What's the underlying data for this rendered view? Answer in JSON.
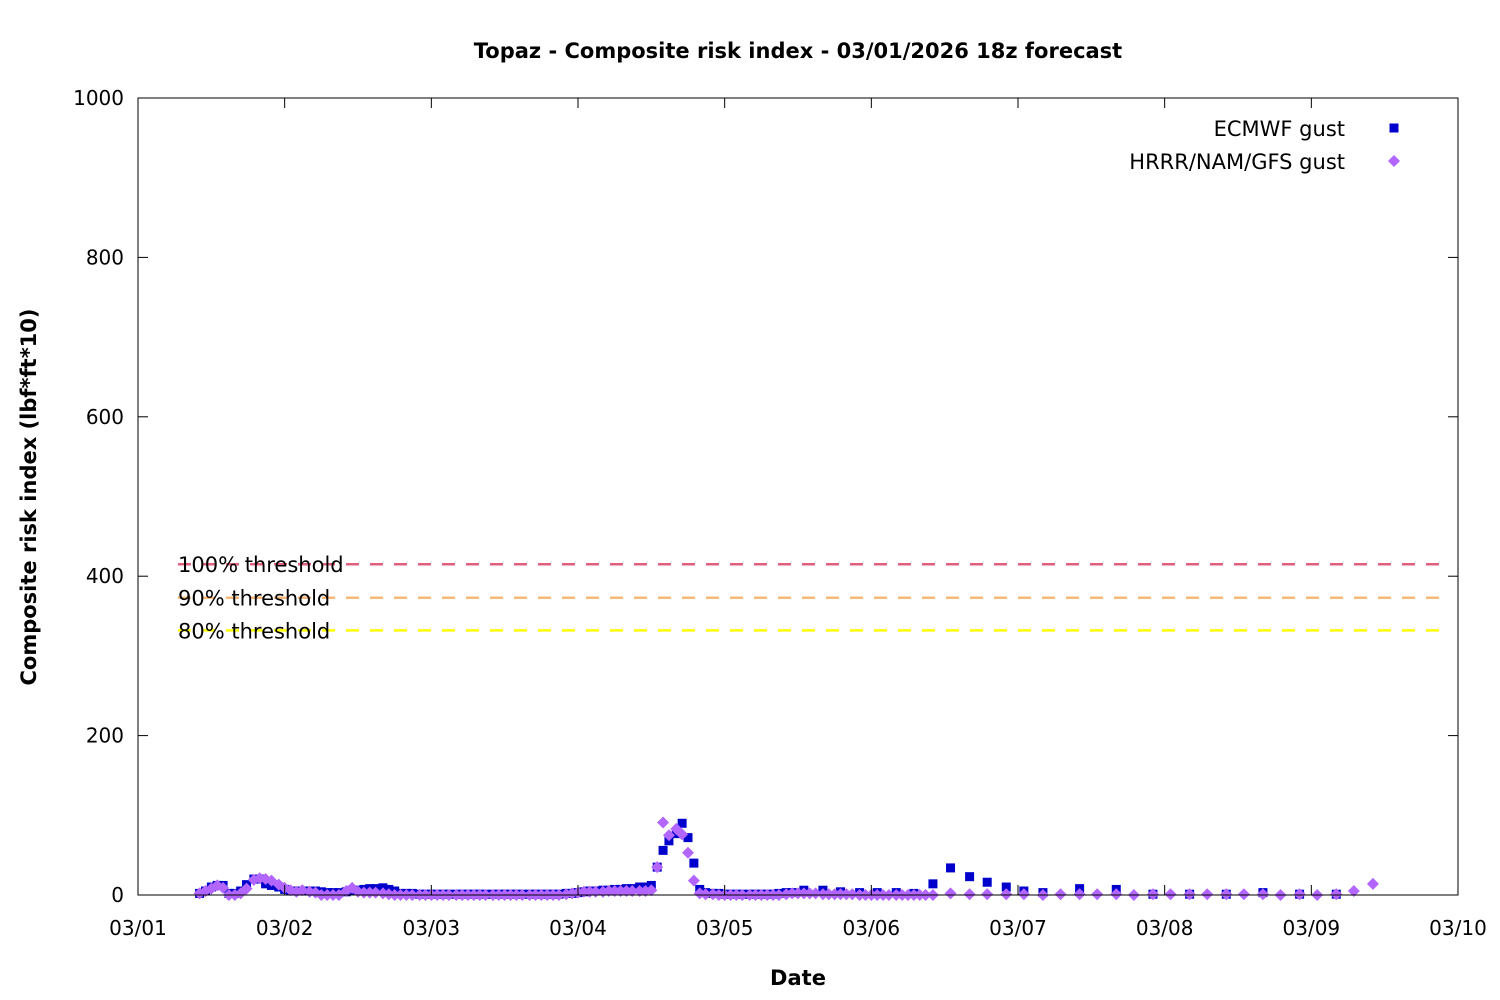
{
  "chart_data": {
    "type": "scatter",
    "title": "Topaz - Composite risk index - 03/01/2026 18z forecast",
    "xlabel": "Date",
    "ylabel": "Composite risk index (lbf*ft*10)",
    "x_tick_labels": [
      "03/01",
      "03/02",
      "03/03",
      "03/04",
      "03/05",
      "03/06",
      "03/07",
      "03/08",
      "03/09",
      "03/10"
    ],
    "x_range_days": [
      0,
      9
    ],
    "y_ticks": [
      "0",
      "200",
      "400",
      "600",
      "800",
      "1000"
    ],
    "ylim": [
      0,
      1000
    ],
    "legend_position": "top-right",
    "grid": false,
    "series": [
      {
        "name": "ECMWF gust",
        "marker": "square",
        "color": "#0000cc",
        "points": [
          [
            0.42,
            2
          ],
          [
            0.46,
            5
          ],
          [
            0.5,
            10
          ],
          [
            0.54,
            12
          ],
          [
            0.58,
            12
          ],
          [
            0.62,
            2
          ],
          [
            0.66,
            2
          ],
          [
            0.7,
            5
          ],
          [
            0.74,
            13
          ],
          [
            0.79,
            20
          ],
          [
            0.83,
            20
          ],
          [
            0.87,
            14
          ],
          [
            0.91,
            12
          ],
          [
            0.96,
            10
          ],
          [
            1.0,
            7
          ],
          [
            1.04,
            5
          ],
          [
            1.08,
            5
          ],
          [
            1.12,
            5
          ],
          [
            1.17,
            5
          ],
          [
            1.21,
            5
          ],
          [
            1.25,
            4
          ],
          [
            1.29,
            3
          ],
          [
            1.33,
            3
          ],
          [
            1.37,
            3
          ],
          [
            1.42,
            4
          ],
          [
            1.46,
            6
          ],
          [
            1.5,
            6
          ],
          [
            1.54,
            7
          ],
          [
            1.58,
            8
          ],
          [
            1.62,
            8
          ],
          [
            1.67,
            9
          ],
          [
            1.71,
            7
          ],
          [
            1.75,
            5
          ],
          [
            1.79,
            2
          ],
          [
            1.83,
            2
          ],
          [
            1.87,
            2
          ],
          [
            1.92,
            1
          ],
          [
            1.96,
            1
          ],
          [
            2.0,
            1
          ],
          [
            2.04,
            1
          ],
          [
            2.08,
            1
          ],
          [
            2.12,
            1
          ],
          [
            2.17,
            1
          ],
          [
            2.21,
            1
          ],
          [
            2.25,
            1
          ],
          [
            2.29,
            1
          ],
          [
            2.33,
            1
          ],
          [
            2.37,
            1
          ],
          [
            2.42,
            1
          ],
          [
            2.46,
            1
          ],
          [
            2.5,
            1
          ],
          [
            2.54,
            1
          ],
          [
            2.58,
            1
          ],
          [
            2.62,
            1
          ],
          [
            2.67,
            1
          ],
          [
            2.71,
            1
          ],
          [
            2.75,
            1
          ],
          [
            2.79,
            1
          ],
          [
            2.83,
            1
          ],
          [
            2.87,
            1
          ],
          [
            2.92,
            2
          ],
          [
            2.96,
            2
          ],
          [
            3.0,
            3
          ],
          [
            3.04,
            4
          ],
          [
            3.08,
            5
          ],
          [
            3.12,
            5
          ],
          [
            3.17,
            6
          ],
          [
            3.21,
            6
          ],
          [
            3.25,
            7
          ],
          [
            3.29,
            7
          ],
          [
            3.33,
            8
          ],
          [
            3.37,
            8
          ],
          [
            3.42,
            10
          ],
          [
            3.46,
            10
          ],
          [
            3.5,
            12
          ],
          [
            3.54,
            35
          ],
          [
            3.58,
            56
          ],
          [
            3.62,
            68
          ],
          [
            3.67,
            77
          ],
          [
            3.71,
            90
          ],
          [
            3.75,
            72
          ],
          [
            3.79,
            40
          ],
          [
            3.83,
            7
          ],
          [
            3.87,
            3
          ],
          [
            3.92,
            2
          ],
          [
            3.96,
            2
          ],
          [
            4.0,
            1
          ],
          [
            4.04,
            1
          ],
          [
            4.08,
            1
          ],
          [
            4.12,
            1
          ],
          [
            4.17,
            1
          ],
          [
            4.21,
            1
          ],
          [
            4.25,
            1
          ],
          [
            4.29,
            1
          ],
          [
            4.33,
            1
          ],
          [
            4.37,
            2
          ],
          [
            4.42,
            3
          ],
          [
            4.46,
            3
          ],
          [
            4.54,
            6
          ],
          [
            4.67,
            6
          ],
          [
            4.79,
            4
          ],
          [
            4.92,
            3
          ],
          [
            5.04,
            3
          ],
          [
            5.17,
            3
          ],
          [
            5.29,
            2
          ],
          [
            5.42,
            14
          ],
          [
            5.54,
            34
          ],
          [
            5.67,
            23
          ],
          [
            5.79,
            16
          ],
          [
            5.92,
            10
          ],
          [
            6.04,
            5
          ],
          [
            6.17,
            3
          ],
          [
            6.42,
            8
          ],
          [
            6.67,
            7
          ],
          [
            6.92,
            1
          ],
          [
            7.17,
            1
          ],
          [
            7.42,
            1
          ],
          [
            7.67,
            3
          ],
          [
            7.92,
            1
          ],
          [
            8.17,
            1
          ]
        ]
      },
      {
        "name": "HRRR/NAM/GFS gust",
        "marker": "diamond",
        "color": "#b266ff",
        "points": [
          [
            0.42,
            2
          ],
          [
            0.46,
            5
          ],
          [
            0.5,
            8
          ],
          [
            0.54,
            12
          ],
          [
            0.58,
            9
          ],
          [
            0.62,
            0
          ],
          [
            0.66,
            0
          ],
          [
            0.7,
            2
          ],
          [
            0.74,
            8
          ],
          [
            0.79,
            19
          ],
          [
            0.83,
            21
          ],
          [
            0.87,
            20
          ],
          [
            0.91,
            18
          ],
          [
            0.96,
            13
          ],
          [
            1.0,
            9
          ],
          [
            1.04,
            6
          ],
          [
            1.08,
            4
          ],
          [
            1.12,
            6
          ],
          [
            1.17,
            4
          ],
          [
            1.21,
            3
          ],
          [
            1.25,
            0
          ],
          [
            1.29,
            0
          ],
          [
            1.33,
            0
          ],
          [
            1.37,
            0
          ],
          [
            1.42,
            5
          ],
          [
            1.46,
            9
          ],
          [
            1.5,
            4
          ],
          [
            1.54,
            3
          ],
          [
            1.58,
            3
          ],
          [
            1.62,
            3
          ],
          [
            1.67,
            2
          ],
          [
            1.71,
            1
          ],
          [
            1.75,
            0
          ],
          [
            1.79,
            0
          ],
          [
            1.83,
            0
          ],
          [
            1.87,
            0
          ],
          [
            1.92,
            0
          ],
          [
            1.96,
            0
          ],
          [
            2.0,
            0
          ],
          [
            2.04,
            0
          ],
          [
            2.08,
            0
          ],
          [
            2.12,
            0
          ],
          [
            2.17,
            0
          ],
          [
            2.21,
            0
          ],
          [
            2.25,
            0
          ],
          [
            2.29,
            0
          ],
          [
            2.33,
            0
          ],
          [
            2.37,
            0
          ],
          [
            2.42,
            0
          ],
          [
            2.46,
            0
          ],
          [
            2.5,
            0
          ],
          [
            2.54,
            0
          ],
          [
            2.58,
            0
          ],
          [
            2.62,
            0
          ],
          [
            2.67,
            0
          ],
          [
            2.71,
            0
          ],
          [
            2.75,
            0
          ],
          [
            2.79,
            0
          ],
          [
            2.83,
            0
          ],
          [
            2.87,
            0
          ],
          [
            2.92,
            1
          ],
          [
            2.96,
            2
          ],
          [
            3.0,
            3
          ],
          [
            3.04,
            4
          ],
          [
            3.08,
            4
          ],
          [
            3.12,
            4
          ],
          [
            3.17,
            4
          ],
          [
            3.21,
            5
          ],
          [
            3.25,
            5
          ],
          [
            3.29,
            5
          ],
          [
            3.33,
            5
          ],
          [
            3.37,
            5
          ],
          [
            3.42,
            5
          ],
          [
            3.46,
            5
          ],
          [
            3.5,
            6
          ],
          [
            3.54,
            35
          ],
          [
            3.58,
            91
          ],
          [
            3.62,
            75
          ],
          [
            3.67,
            83
          ],
          [
            3.71,
            76
          ],
          [
            3.75,
            53
          ],
          [
            3.79,
            18
          ],
          [
            3.83,
            2
          ],
          [
            3.87,
            1
          ],
          [
            3.92,
            1
          ],
          [
            3.96,
            0
          ],
          [
            4.0,
            0
          ],
          [
            4.04,
            0
          ],
          [
            4.08,
            0
          ],
          [
            4.12,
            0
          ],
          [
            4.17,
            0
          ],
          [
            4.21,
            0
          ],
          [
            4.25,
            0
          ],
          [
            4.29,
            0
          ],
          [
            4.33,
            0
          ],
          [
            4.37,
            0
          ],
          [
            4.42,
            1
          ],
          [
            4.46,
            2
          ],
          [
            4.5,
            2
          ],
          [
            4.54,
            2
          ],
          [
            4.58,
            2
          ],
          [
            4.62,
            2
          ],
          [
            4.67,
            1
          ],
          [
            4.71,
            1
          ],
          [
            4.75,
            1
          ],
          [
            4.79,
            1
          ],
          [
            4.83,
            1
          ],
          [
            4.87,
            1
          ],
          [
            4.92,
            0
          ],
          [
            4.96,
            0
          ],
          [
            5.0,
            0
          ],
          [
            5.04,
            0
          ],
          [
            5.08,
            0
          ],
          [
            5.12,
            0
          ],
          [
            5.17,
            0
          ],
          [
            5.21,
            0
          ],
          [
            5.25,
            0
          ],
          [
            5.29,
            0
          ],
          [
            5.33,
            0
          ],
          [
            5.37,
            0
          ],
          [
            5.42,
            0
          ],
          [
            5.54,
            2
          ],
          [
            5.67,
            1
          ],
          [
            5.79,
            1
          ],
          [
            5.92,
            1
          ],
          [
            6.04,
            1
          ],
          [
            6.17,
            0
          ],
          [
            6.29,
            1
          ],
          [
            6.42,
            1
          ],
          [
            6.54,
            1
          ],
          [
            6.67,
            1
          ],
          [
            6.79,
            0
          ],
          [
            6.92,
            1
          ],
          [
            7.04,
            1
          ],
          [
            7.17,
            1
          ],
          [
            7.29,
            1
          ],
          [
            7.42,
            1
          ],
          [
            7.54,
            1
          ],
          [
            7.67,
            1
          ],
          [
            7.79,
            0
          ],
          [
            7.92,
            1
          ],
          [
            8.04,
            0
          ],
          [
            8.17,
            1
          ],
          [
            8.29,
            5
          ],
          [
            8.42,
            14
          ]
        ]
      }
    ],
    "thresholds": [
      {
        "label": "100% threshold",
        "value": 415,
        "color": "#e0607e"
      },
      {
        "label": "90% threshold",
        "value": 373,
        "color": "#f8b878"
      },
      {
        "label": "80% threshold",
        "value": 332,
        "color": "#ffff00"
      }
    ]
  }
}
